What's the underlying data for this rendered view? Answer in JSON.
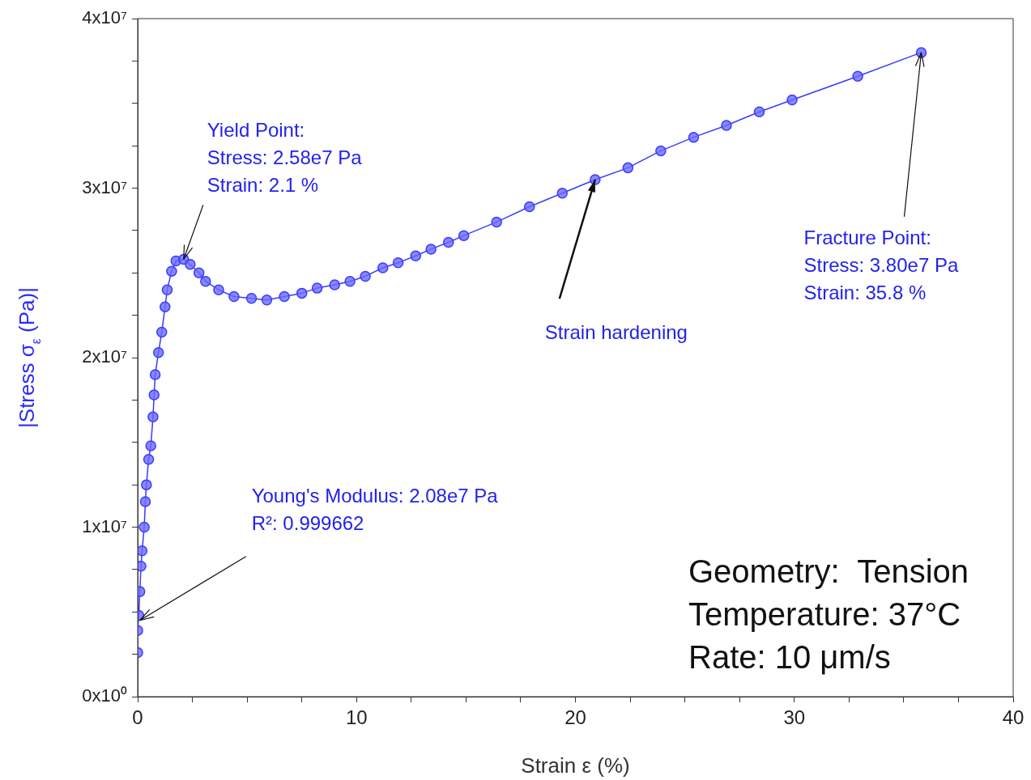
{
  "chart_data": {
    "type": "line",
    "xlabel": "Strain ε (%)",
    "ylabel": "|Stress σ$_{ε}$ (Pa)|",
    "x": [
      0,
      0,
      0.05,
      0.1,
      0.15,
      0.2,
      0.3,
      0.35,
      0.4,
      0.5,
      0.6,
      0.7,
      0.75,
      0.8,
      0.95,
      1.1,
      1.25,
      1.35,
      1.55,
      1.75,
      2.1,
      2.4,
      2.8,
      3.1,
      3.7,
      4.4,
      5.2,
      5.9,
      6.7,
      7.5,
      8.2,
      9.0,
      9.7,
      10.4,
      11.2,
      11.9,
      12.7,
      13.4,
      14.2,
      14.9,
      16.4,
      17.9,
      19.4,
      20.9,
      22.4,
      23.9,
      25.4,
      26.9,
      28.4,
      29.9,
      32.9,
      35.8
    ],
    "series": [
      {
        "color": "#3a3aff",
        "values": [
          2600000,
          3900000,
          4800000,
          6200000,
          7700000,
          8600000,
          10000000,
          11500000,
          12500000,
          14000000,
          14800000,
          16500000,
          17800000,
          19000000,
          20300000,
          21500000,
          23000000,
          24000000,
          25100000,
          25700000,
          25800000,
          25500000,
          25000000,
          24500000,
          24000000,
          23600000,
          23500000,
          23400000,
          23600000,
          23800000,
          24100000,
          24300000,
          24500000,
          24800000,
          25300000,
          25600000,
          26000000,
          26400000,
          26800000,
          27200000,
          28000000,
          28900000,
          29700000,
          30500000,
          31200000,
          32200000,
          33000000,
          33700000,
          34500000,
          35200000,
          36600000,
          38000000
        ]
      }
    ],
    "xlim": [
      0,
      40
    ],
    "xticks": [
      0,
      {
        "value": 2.5,
        "label": null
      },
      {
        "value": 5,
        "label": null
      },
      {
        "value": 7.5,
        "label": null
      },
      10,
      {
        "value": 12.5,
        "label": null
      },
      {
        "value": 15,
        "label": null
      },
      {
        "value": 17.5,
        "label": null
      },
      20,
      {
        "value": 22.5,
        "label": null
      },
      {
        "value": 25,
        "label": null
      },
      {
        "value": 27.5,
        "label": null
      },
      30,
      {
        "value": 32.5,
        "label": null
      },
      {
        "value": 35,
        "label": null
      },
      {
        "value": 37.5,
        "label": null
      },
      40
    ],
    "ylim": [
      0,
      40000000
    ],
    "yticks": [
      {
        "value": 0,
        "label": "0x10⁰"
      },
      {
        "value": 2500000,
        "label": null
      },
      {
        "value": 5000000,
        "label": null
      },
      {
        "value": 7500000,
        "label": null
      },
      {
        "value": 10000000,
        "label": "1x10⁷"
      },
      {
        "value": 12500000,
        "label": null
      },
      {
        "value": 15000000,
        "label": null
      },
      {
        "value": 17500000,
        "label": null
      },
      {
        "value": 20000000,
        "label": "2x10⁷"
      },
      {
        "value": 22500000,
        "label": null
      },
      {
        "value": 25000000,
        "label": null
      },
      {
        "value": 27500000,
        "label": null
      },
      {
        "value": 30000000,
        "label": "3x10⁷"
      },
      {
        "value": 32500000,
        "label": null
      },
      {
        "value": 35000000,
        "label": null
      },
      {
        "value": 37500000,
        "label": null
      },
      {
        "value": 40000000,
        "label": "4x10⁷"
      }
    ],
    "grid": false,
    "legend": false,
    "marker": "circle",
    "line_style": "solid",
    "annotations": [
      {
        "text": "Yield Point:\nStress: 2.58e7 Pa\nStrain: 2.1 %",
        "x": 2.1,
        "y": 25800000
      },
      {
        "text": "Young's Modulus: 2.08e7 Pa\nR²: 0.999662",
        "x": 0.1,
        "y": 4500000
      },
      {
        "text": "Strain hardening",
        "x": 20.9,
        "y": 30500000
      },
      {
        "text": "Fracture Point:\nStress: 3.80e7 Pa\nStrain: 35.8 %",
        "x": 35.8,
        "y": 38000000
      },
      "Geometry:  Tension\nTemperature: 37°C\nRate: 10 μm/s"
    ]
  }
}
